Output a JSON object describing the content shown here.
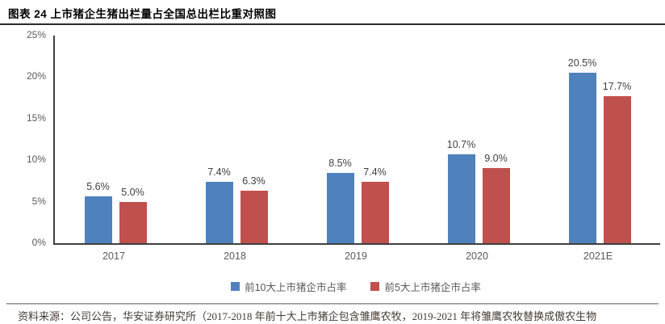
{
  "figure": {
    "title": "图表 24 上市猪企生猪出栏量占全国总出栏比重对照图",
    "source_note": "资料来源：公司公告，华安证券研究所（2017-2018 年前十大上市猪企包含雏鹰农牧，2019-2021 年将雏鹰农牧替换成傲农生物"
  },
  "colors": {
    "series_blue": "#4F81BD",
    "series_red": "#C0504D",
    "axis": "#404040",
    "tick_label": "#595959",
    "data_label": "#404040",
    "title_rule": "#2B2B2B",
    "source_rule": "#9B9B9B"
  },
  "chart_data": {
    "type": "bar",
    "title": "图表 24 上市猪企生猪出栏量占全国总出栏比重对照图",
    "categories": [
      "2017",
      "2018",
      "2019",
      "2020",
      "2021E"
    ],
    "series": [
      {
        "name": "前10大上市猪企市占率",
        "color": "#4F81BD",
        "values": [
          5.6,
          7.4,
          8.5,
          10.7,
          20.5
        ]
      },
      {
        "name": "前5大上市猪企市占率",
        "color": "#C0504D",
        "values": [
          5.0,
          6.3,
          7.4,
          9.0,
          17.7
        ]
      }
    ],
    "label_format": "{value}%",
    "xlabel": "",
    "ylabel": "",
    "ylim": [
      0,
      25
    ],
    "yticks": [
      "0%",
      "5%",
      "10%",
      "15%",
      "20%",
      "25%"
    ],
    "grid": false,
    "legend_position": "bottom"
  }
}
